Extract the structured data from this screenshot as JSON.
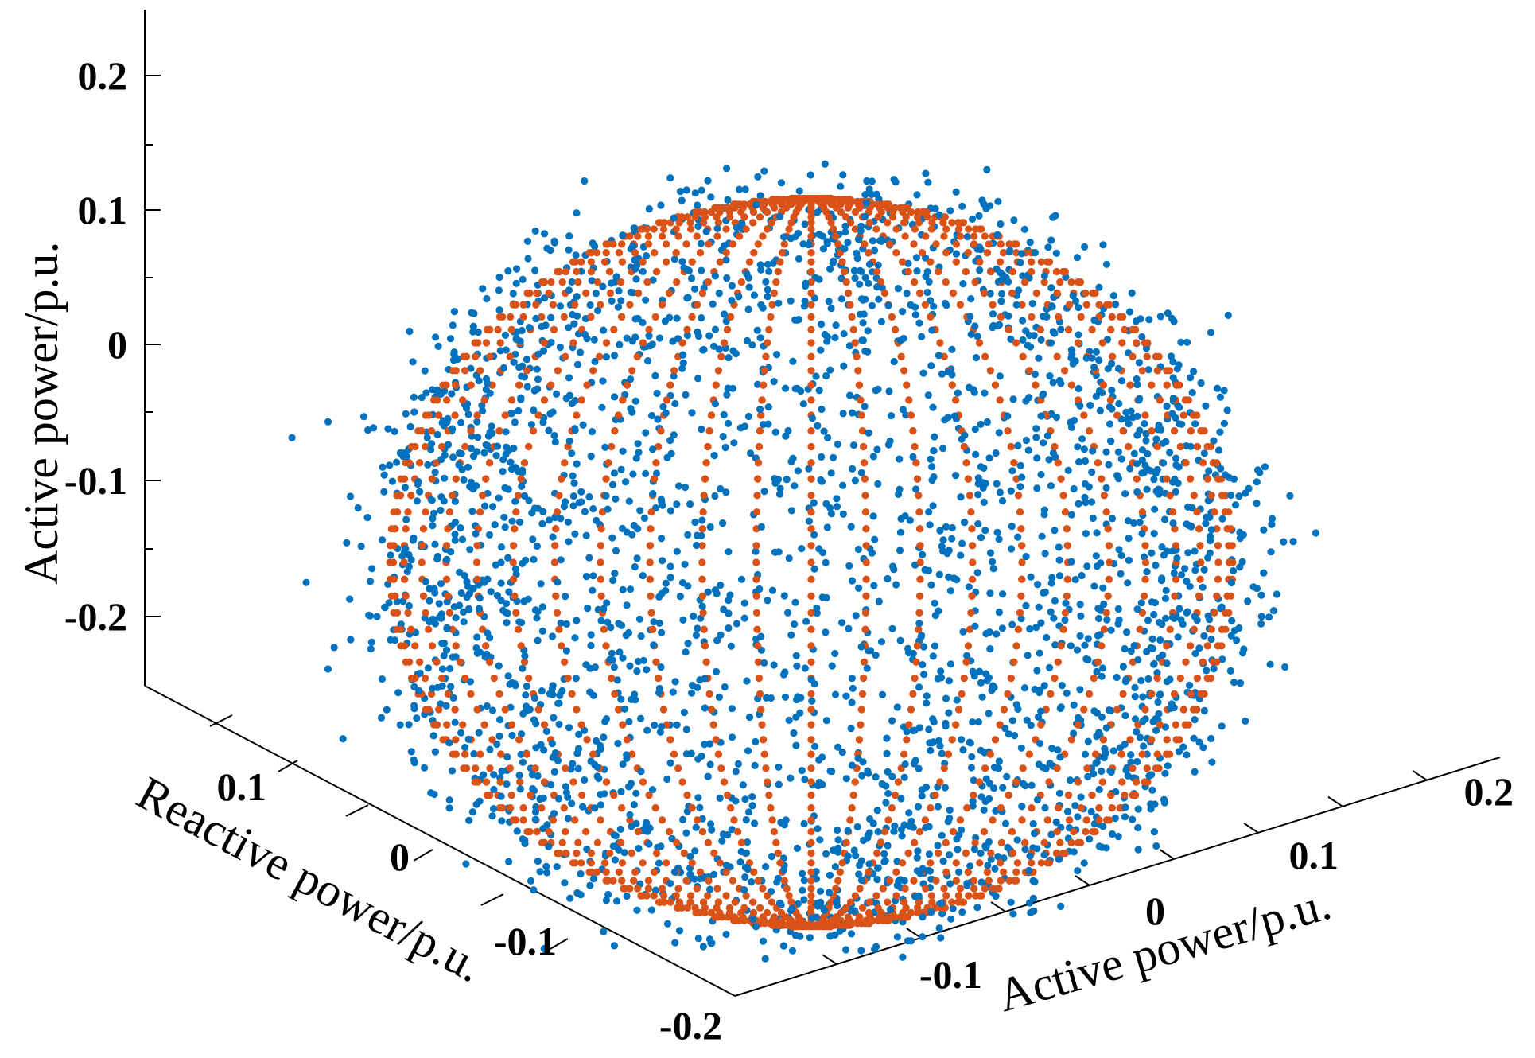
{
  "chart_data": {
    "type": "scatter",
    "projection": "3d",
    "colors": {
      "measured": "#0072BD",
      "boundary": "#D95319",
      "axes": "#000000"
    },
    "x_axis": {
      "label": "Active power/p.u.",
      "range": [
        -0.2,
        0.2
      ],
      "ticks": [
        "-0.1",
        "0",
        "0.1",
        "0.2"
      ]
    },
    "y_axis": {
      "label": "Reactive power/p.u.",
      "range": [
        -0.2,
        0.2
      ],
      "ticks": [
        "-0.2",
        "-0.1",
        "0",
        "0.1"
      ]
    },
    "z_axis": {
      "label": "Active power/p.u.",
      "range": [
        -0.25,
        0.25
      ],
      "ticks": [
        "0.2",
        "0.1",
        "0",
        "-0.1",
        "-0.2"
      ]
    },
    "series": [
      {
        "key": "measured",
        "marker": "dot",
        "color": "#0072BD",
        "distribution": "scattered points clustered on and around sphere surface",
        "approx_radius": 0.15
      },
      {
        "key": "boundary",
        "marker": "dot",
        "color": "#D95319",
        "shape": "sphere",
        "center": [
          0,
          0,
          -0.05
        ],
        "radius": 0.15
      }
    ],
    "grid": false,
    "legend": "none"
  }
}
